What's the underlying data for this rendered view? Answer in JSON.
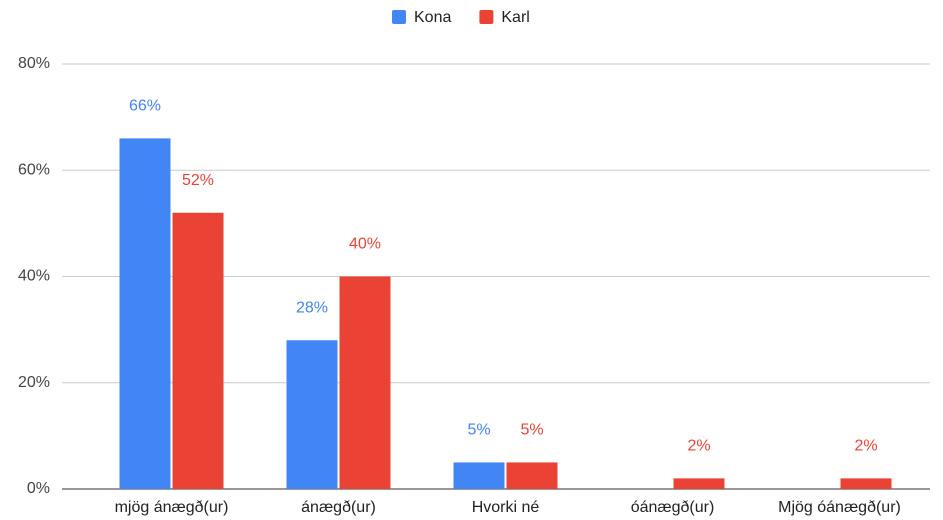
{
  "chart_data": {
    "type": "bar",
    "categories": [
      "mjög ánægð(ur)",
      "ánægð(ur)",
      "Hvorki né",
      "óánægð(ur)",
      "Mjög óánægð(ur)"
    ],
    "series": [
      {
        "name": "Kona",
        "color": "#4285f4",
        "values": [
          66,
          28,
          5,
          null,
          null
        ],
        "value_labels": [
          "66%",
          "28%",
          "5%",
          null,
          null
        ]
      },
      {
        "name": "Karl",
        "color": "#ea4335",
        "values": [
          52,
          40,
          5,
          2,
          2
        ],
        "value_labels": [
          "52%",
          "40%",
          "5%",
          "2%",
          "2%"
        ]
      }
    ],
    "ylim": [
      0,
      80
    ],
    "yticks": [
      {
        "value": 0,
        "label": "0%"
      },
      {
        "value": 20,
        "label": "20%"
      },
      {
        "value": 40,
        "label": "40%"
      },
      {
        "value": 60,
        "label": "60%"
      },
      {
        "value": 80,
        "label": "80%"
      }
    ],
    "grid": true,
    "legend": "top"
  }
}
